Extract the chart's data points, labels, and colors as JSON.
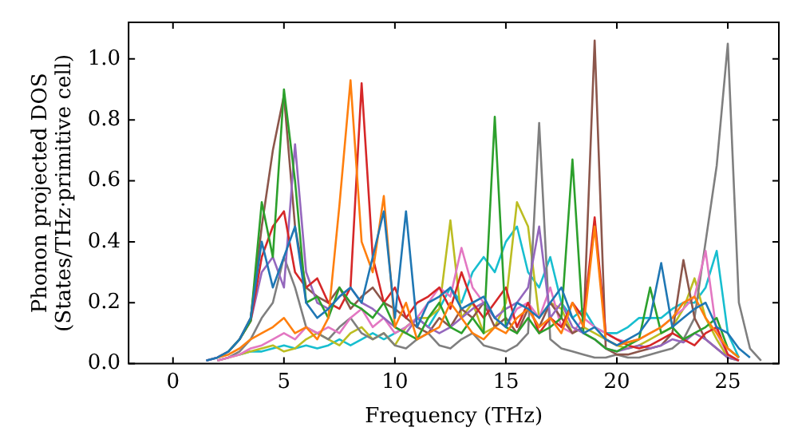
{
  "chart_data": {
    "type": "line",
    "xlabel": "Frequency (THz)",
    "ylabel": "Phonon projected DOS\n(States/THz·primitive cell)",
    "xlim": [
      -2,
      27.3
    ],
    "ylim": [
      0,
      1.12
    ],
    "xticks": [
      0,
      5,
      10,
      15,
      20,
      25
    ],
    "yticks": [
      {
        "value": 0,
        "label": "0.0"
      },
      {
        "value": 0.2,
        "label": "0.2"
      },
      {
        "value": 0.4,
        "label": "0.4"
      },
      {
        "value": 0.6,
        "label": "0.6"
      },
      {
        "value": 0.8,
        "label": "0.8"
      },
      {
        "value": 1,
        "label": "1.0"
      }
    ],
    "grid": false,
    "legend": false,
    "marker": "none",
    "line_style": "solid",
    "x": [
      1.5,
      2,
      2.5,
      3,
      3.5,
      4,
      4.5,
      5,
      5.5,
      6,
      6.5,
      7,
      7.5,
      8,
      8.5,
      9,
      9.5,
      10,
      10.5,
      11,
      11.5,
      12,
      12.5,
      13,
      13.5,
      14,
      14.5,
      15,
      15.5,
      16,
      16.5,
      17,
      17.5,
      18,
      18.5,
      19,
      19.5,
      20,
      20.5,
      21,
      21.5,
      22,
      22.5,
      23,
      23.5,
      24,
      24.5,
      25,
      25.5,
      26,
      26.5
    ],
    "series": [
      {
        "color": "#1f77b4",
        "values": [
          0.01,
          0.02,
          0.04,
          0.08,
          0.15,
          0.4,
          0.25,
          0.35,
          0.45,
          0.2,
          0.15,
          0.18,
          0.22,
          0.25,
          0.2,
          0.35,
          0.5,
          0.15,
          0.5,
          0.12,
          0.2,
          0.22,
          0.25,
          0.18,
          0.2,
          0.22,
          0.15,
          0.12,
          0.2,
          0.18,
          0.15,
          0.2,
          0.25,
          0.15,
          0.1,
          0.12,
          0.08,
          0.06,
          0.08,
          0.1,
          0.15,
          0.33,
          0.12,
          0.15,
          0.18,
          0.2,
          0.12,
          0.1,
          0.05,
          0.02,
          null
        ]
      },
      {
        "color": "#ff7f0e",
        "values": [
          null,
          0.02,
          0.03,
          0.05,
          0.08,
          0.1,
          0.12,
          0.15,
          0.1,
          0.12,
          0.08,
          0.15,
          0.52,
          0.93,
          0.4,
          0.3,
          0.55,
          0.12,
          0.2,
          0.08,
          0.1,
          0.12,
          0.2,
          0.15,
          0.1,
          0.08,
          0.12,
          0.1,
          0.15,
          0.18,
          0.12,
          0.15,
          0.1,
          0.2,
          0.12,
          0.45,
          0.08,
          0.06,
          0.07,
          0.08,
          0.1,
          0.12,
          0.15,
          0.2,
          0.22,
          0.15,
          0.1,
          0.05,
          0.02,
          null,
          null
        ]
      },
      {
        "color": "#2ca02c",
        "values": [
          null,
          null,
          0.04,
          0.08,
          0.14,
          0.53,
          0.35,
          0.9,
          0.6,
          0.2,
          0.22,
          0.15,
          0.25,
          0.2,
          0.18,
          0.15,
          0.2,
          0.12,
          0.1,
          0.08,
          0.15,
          0.2,
          0.12,
          0.1,
          0.15,
          0.1,
          0.81,
          0.12,
          0.1,
          0.15,
          0.1,
          0.12,
          0.15,
          0.67,
          0.1,
          0.08,
          0.05,
          0.04,
          0.06,
          0.08,
          0.25,
          0.1,
          0.12,
          0.08,
          0.1,
          0.12,
          0.15,
          0.05,
          0.02,
          null,
          null
        ]
      },
      {
        "color": "#d62728",
        "values": [
          null,
          null,
          null,
          0.08,
          0.14,
          0.35,
          0.45,
          0.5,
          0.3,
          0.25,
          0.28,
          0.2,
          0.18,
          0.25,
          0.92,
          0.35,
          0.2,
          0.25,
          0.15,
          0.2,
          0.22,
          0.25,
          0.18,
          0.3,
          0.2,
          0.15,
          0.2,
          0.25,
          0.12,
          0.2,
          0.1,
          0.15,
          0.12,
          0.2,
          0.15,
          0.48,
          0.1,
          0.08,
          0.06,
          0.05,
          0.06,
          0.08,
          0.1,
          0.08,
          0.06,
          0.1,
          0.12,
          0.03,
          0.01,
          null,
          null
        ]
      },
      {
        "color": "#9467bd",
        "values": [
          0.01,
          0.02,
          0.04,
          0.08,
          0.14,
          0.3,
          0.35,
          0.25,
          0.72,
          0.3,
          0.2,
          0.18,
          0.22,
          0.25,
          0.2,
          0.18,
          0.15,
          0.12,
          0.1,
          0.15,
          0.12,
          0.1,
          0.12,
          0.15,
          0.18,
          0.2,
          0.15,
          0.18,
          0.2,
          0.25,
          0.45,
          0.15,
          0.2,
          0.12,
          0.1,
          0.08,
          0.05,
          0.04,
          0.05,
          0.06,
          0.05,
          0.06,
          0.08,
          0.07,
          0.1,
          0.08,
          0.05,
          0.02,
          0.01,
          null,
          null
        ]
      },
      {
        "color": "#8c564b",
        "values": [
          0.01,
          0.02,
          0.04,
          0.08,
          0.15,
          0.45,
          0.7,
          0.88,
          0.45,
          0.25,
          0.22,
          0.2,
          0.25,
          0.18,
          0.22,
          0.25,
          0.2,
          0.18,
          0.15,
          0.12,
          0.1,
          0.15,
          0.12,
          0.18,
          0.15,
          0.2,
          0.12,
          0.15,
          0.1,
          0.18,
          0.12,
          0.2,
          0.15,
          0.1,
          0.12,
          1.06,
          0.05,
          0.03,
          0.03,
          0.04,
          0.05,
          0.06,
          0.1,
          0.34,
          0.15,
          0.08,
          0.05,
          0.02,
          null,
          null,
          null
        ]
      },
      {
        "color": "#e377c2",
        "values": [
          null,
          0.01,
          0.02,
          0.03,
          0.05,
          0.06,
          0.08,
          0.1,
          0.08,
          0.12,
          0.1,
          0.12,
          0.1,
          0.15,
          0.18,
          0.12,
          0.15,
          0.1,
          0.12,
          0.15,
          0.2,
          0.25,
          0.22,
          0.38,
          0.25,
          0.2,
          0.15,
          0.12,
          0.18,
          0.2,
          0.15,
          0.25,
          0.12,
          0.1,
          0.15,
          0.12,
          0.1,
          0.08,
          0.07,
          0.08,
          0.1,
          0.12,
          0.15,
          0.18,
          0.22,
          0.37,
          0.1,
          0.03,
          0.01,
          null,
          null
        ]
      },
      {
        "color": "#7f7f7f",
        "values": [
          null,
          0.01,
          0.02,
          0.04,
          0.08,
          0.15,
          0.2,
          0.35,
          0.25,
          0.12,
          0.1,
          0.08,
          0.12,
          0.15,
          0.1,
          0.08,
          0.1,
          0.06,
          0.05,
          0.08,
          0.1,
          0.06,
          0.05,
          0.08,
          0.1,
          0.06,
          0.05,
          0.04,
          0.06,
          0.1,
          0.79,
          0.08,
          0.05,
          0.04,
          0.03,
          0.02,
          0.02,
          0.03,
          0.02,
          0.02,
          0.03,
          0.04,
          0.05,
          0.08,
          0.15,
          0.4,
          0.65,
          1.05,
          0.2,
          0.05,
          0.01
        ]
      },
      {
        "color": "#bcbd22",
        "values": [
          null,
          0.01,
          0.02,
          0.03,
          0.04,
          0.05,
          0.06,
          0.04,
          0.05,
          0.08,
          0.1,
          0.08,
          0.06,
          0.1,
          0.12,
          0.08,
          0.1,
          0.06,
          0.12,
          0.15,
          0.15,
          0.18,
          0.47,
          0.15,
          0.2,
          0.1,
          0.12,
          0.2,
          0.53,
          0.45,
          0.15,
          0.2,
          0.18,
          0.1,
          0.12,
          0.1,
          0.08,
          0.06,
          0.05,
          0.06,
          0.08,
          0.1,
          0.12,
          0.18,
          0.28,
          0.15,
          0.08,
          0.02,
          0.01,
          null,
          null
        ]
      },
      {
        "color": "#17becf",
        "values": [
          null,
          null,
          null,
          0.03,
          0.04,
          0.04,
          0.05,
          0.06,
          0.05,
          0.06,
          0.05,
          0.06,
          0.08,
          0.06,
          0.08,
          0.1,
          0.08,
          0.1,
          0.12,
          0.15,
          0.12,
          0.18,
          0.25,
          0.2,
          0.3,
          0.35,
          0.3,
          0.4,
          0.45,
          0.3,
          0.25,
          0.35,
          0.2,
          0.15,
          0.18,
          0.12,
          0.1,
          0.1,
          0.12,
          0.15,
          0.15,
          0.15,
          0.18,
          0.2,
          0.2,
          0.25,
          0.37,
          0.1,
          0.02,
          null,
          null
        ]
      }
    ]
  }
}
